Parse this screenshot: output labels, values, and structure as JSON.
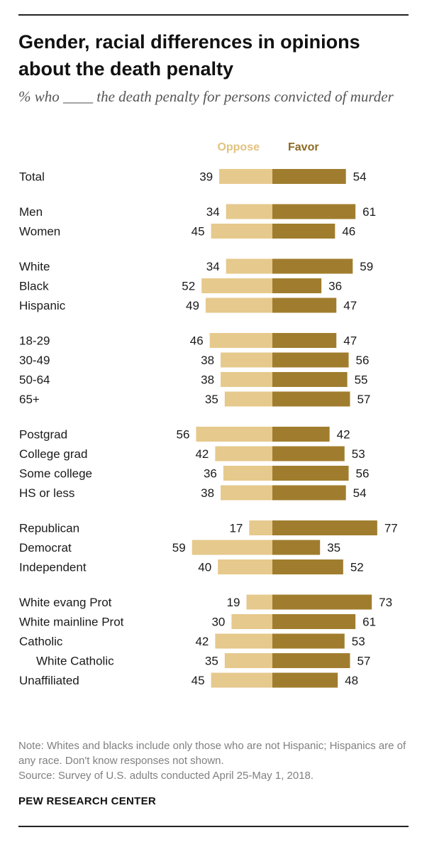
{
  "header": {
    "title": "Gender, racial differences in opinions about the death penalty",
    "subtitle": "% who ____ the death penalty for persons convicted of murder"
  },
  "footer": {
    "note": "Note: Whites and blacks include only those who are not Hispanic; Hispanics are of any race. Don't know responses not shown.",
    "source": "Source: Survey of U.S. adults conducted April 25-May 1, 2018.",
    "org": "PEW RESEARCH CENTER"
  },
  "colors": {
    "oppose": "#e6c98c",
    "favor": "#a07d2e",
    "oppose_label": "#e2c27e",
    "favor_label": "#8c6a22",
    "text": "#1a1a1a"
  },
  "chart_data": {
    "type": "bar",
    "orientation": "horizontal-diverging",
    "title": "Gender, racial differences in opinions about the death penalty",
    "subtitle": "% who ____ the death penalty for persons convicted of murder",
    "legend": [
      "Oppose",
      "Favor"
    ],
    "series_names": {
      "oppose": "Oppose",
      "favor": "Favor"
    },
    "groups": [
      {
        "rows": [
          {
            "label": "Total",
            "oppose": 39,
            "favor": 54
          }
        ]
      },
      {
        "rows": [
          {
            "label": "Men",
            "oppose": 34,
            "favor": 61
          },
          {
            "label": "Women",
            "oppose": 45,
            "favor": 46
          }
        ]
      },
      {
        "rows": [
          {
            "label": "White",
            "oppose": 34,
            "favor": 59
          },
          {
            "label": "Black",
            "oppose": 52,
            "favor": 36
          },
          {
            "label": "Hispanic",
            "oppose": 49,
            "favor": 47
          }
        ]
      },
      {
        "rows": [
          {
            "label": "18-29",
            "oppose": 46,
            "favor": 47
          },
          {
            "label": "30-49",
            "oppose": 38,
            "favor": 56
          },
          {
            "label": "50-64",
            "oppose": 38,
            "favor": 55
          },
          {
            "label": "65+",
            "oppose": 35,
            "favor": 57
          }
        ]
      },
      {
        "rows": [
          {
            "label": "Postgrad",
            "oppose": 56,
            "favor": 42
          },
          {
            "label": "College grad",
            "oppose": 42,
            "favor": 53
          },
          {
            "label": "Some college",
            "oppose": 36,
            "favor": 56
          },
          {
            "label": "HS or less",
            "oppose": 38,
            "favor": 54
          }
        ]
      },
      {
        "rows": [
          {
            "label": "Republican",
            "oppose": 17,
            "favor": 77
          },
          {
            "label": "Democrat",
            "oppose": 59,
            "favor": 35
          },
          {
            "label": "Independent",
            "oppose": 40,
            "favor": 52
          }
        ]
      },
      {
        "rows": [
          {
            "label": "White evang Prot",
            "oppose": 19,
            "favor": 73
          },
          {
            "label": "White mainline Prot",
            "oppose": 30,
            "favor": 61
          },
          {
            "label": "Catholic",
            "oppose": 42,
            "favor": 53
          },
          {
            "label": "White Catholic",
            "oppose": 35,
            "favor": 57,
            "indent": true
          },
          {
            "label": "Unaffiliated",
            "oppose": 45,
            "favor": 48
          }
        ]
      }
    ]
  }
}
